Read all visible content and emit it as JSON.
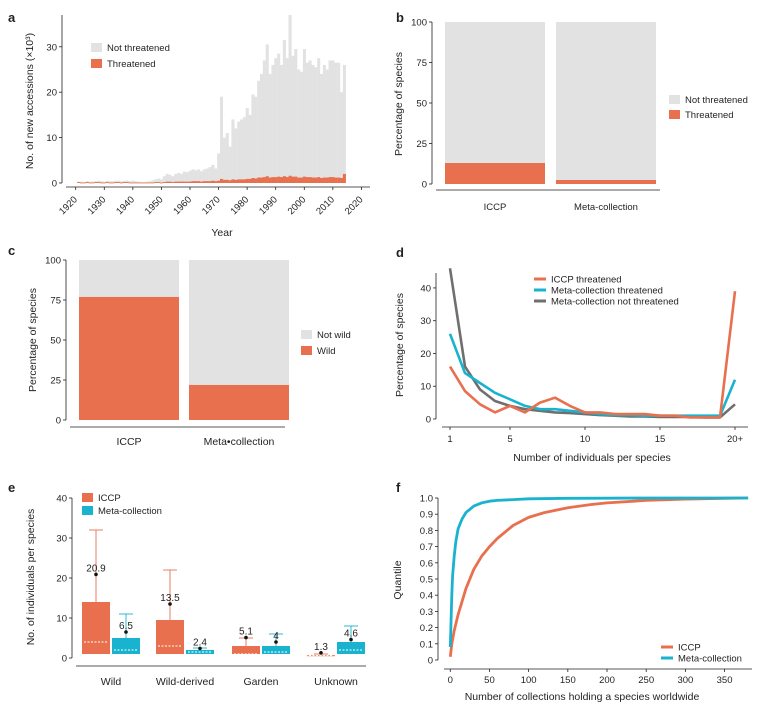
{
  "colors": {
    "threatened": "#E8704F",
    "not_threatened": "#E2E2E3",
    "meta": "#1AB3CF",
    "meta_not_threatened": "#6F6F6F",
    "axis": "#231f20"
  },
  "chart_data": [
    {
      "panel": "a",
      "type": "bar",
      "xlabel": "Year",
      "ylabel": "No. of new accessions (×10³)",
      "xlim": [
        1918,
        2023
      ],
      "ylim": [
        0,
        37
      ],
      "xticks": [
        1920,
        1930,
        1940,
        1950,
        1960,
        1970,
        1980,
        1990,
        2000,
        2010,
        2020
      ],
      "yticks": [
        0,
        10,
        20,
        30
      ],
      "legend": [
        "Not threatened",
        "Threatened"
      ],
      "legend_position": "top-left",
      "series": [
        {
          "name": "Not threatened",
          "x_start": 1921,
          "values": [
            0.3,
            0.3,
            0.2,
            0.4,
            0.3,
            0.3,
            0.4,
            0.5,
            0.4,
            0.3,
            0.5,
            0.4,
            0.4,
            0.5,
            0.5,
            0.4,
            0.5,
            0.5,
            0.4,
            0.5,
            0.4,
            0.3,
            0.2,
            0.2,
            0.3,
            0.4,
            0.6,
            0.8,
            1.0,
            0.8,
            1.5,
            2.0,
            1.8,
            1.5,
            2.0,
            2.2,
            2.0,
            2.5,
            2.4,
            2.7,
            3.0,
            2.8,
            3.0,
            2.6,
            3.0,
            3.2,
            3.5,
            4.0,
            3.2,
            6.5,
            19.0,
            10.0,
            11.0,
            8.0,
            14.0,
            12.0,
            13.5,
            14.0,
            14.5,
            16.5,
            15.0,
            19.5,
            19.0,
            22.5,
            24.0,
            27.0,
            30.5,
            24.0,
            26.0,
            27.5,
            28.5,
            26.0,
            31.5,
            27.5,
            37.0,
            28.0,
            29.5,
            25.0,
            24.5,
            29.5,
            26.5,
            27.0,
            26.0,
            25.5,
            27.5,
            24.0,
            26.0,
            25.0,
            27.0,
            27.0,
            26.5,
            26.5,
            20.0,
            26.0
          ]
        },
        {
          "name": "Threatened",
          "x_start": 1921,
          "values": [
            0.2,
            0.1,
            0.1,
            0.2,
            0.1,
            0.1,
            0.2,
            0.2,
            0.1,
            0.1,
            0.2,
            0.1,
            0.1,
            0.2,
            0.2,
            0.1,
            0.2,
            0.2,
            0.1,
            0.1,
            0.1,
            0.1,
            0.1,
            0.1,
            0.1,
            0.1,
            0.1,
            0.2,
            0.2,
            0.1,
            0.2,
            0.3,
            0.3,
            0.2,
            0.3,
            0.3,
            0.3,
            0.3,
            0.3,
            0.3,
            0.4,
            0.4,
            0.4,
            0.3,
            0.4,
            0.4,
            0.4,
            0.5,
            0.4,
            0.5,
            0.9,
            0.7,
            0.7,
            0.6,
            0.8,
            0.7,
            0.8,
            0.8,
            0.8,
            0.9,
            0.9,
            1.1,
            1.0,
            1.2,
            1.2,
            1.3,
            1.5,
            1.2,
            1.3,
            1.3,
            1.4,
            1.3,
            1.5,
            1.3,
            1.6,
            1.4,
            1.4,
            1.2,
            1.2,
            1.4,
            1.3,
            1.3,
            1.2,
            1.2,
            1.3,
            1.1,
            1.2,
            1.2,
            1.3,
            1.3,
            1.2,
            1.2,
            1.1,
            2.0
          ]
        }
      ]
    },
    {
      "panel": "b",
      "type": "bar",
      "stacked": true,
      "categories": [
        "ICCP",
        "Meta-collection"
      ],
      "ylabel": "Percentage of species",
      "ylim": [
        0,
        100
      ],
      "yticks": [
        0,
        25,
        50,
        75,
        100
      ],
      "legend": [
        "Not threatened",
        "Threatened"
      ],
      "legend_position": "right",
      "series": [
        {
          "name": "Threatened",
          "values": [
            13,
            2.5
          ]
        },
        {
          "name": "Not threatened",
          "values": [
            87,
            97.5
          ]
        }
      ]
    },
    {
      "panel": "c",
      "type": "bar",
      "stacked": true,
      "categories": [
        "ICCP",
        "Meta•collection"
      ],
      "ylabel": "Percentage of species",
      "ylim": [
        0,
        100
      ],
      "yticks": [
        0,
        25,
        50,
        75,
        100
      ],
      "legend": [
        "Not wild",
        "Wild"
      ],
      "legend_position": "right",
      "series": [
        {
          "name": "Wild",
          "values": [
            77,
            22
          ]
        },
        {
          "name": "Not wild",
          "values": [
            23,
            78
          ]
        }
      ]
    },
    {
      "panel": "d",
      "type": "line",
      "xlabel": "Number of individuals per species",
      "ylabel": "Percentage of species",
      "x": [
        1,
        2,
        3,
        4,
        5,
        6,
        7,
        8,
        9,
        10,
        11,
        12,
        13,
        14,
        15,
        16,
        17,
        18,
        19,
        20
      ],
      "xticks": [
        1,
        5,
        10,
        15,
        "20+"
      ],
      "ylim": [
        0,
        47
      ],
      "yticks": [
        0,
        10,
        20,
        30,
        40
      ],
      "legend_position": "top",
      "series": [
        {
          "name": "ICCP threatened",
          "values": [
            16,
            8.5,
            4.5,
            2,
            4,
            2,
            5,
            6.5,
            4,
            2,
            2,
            1.5,
            1.5,
            1.5,
            1,
            1,
            0.5,
            0.5,
            0.5,
            39
          ]
        },
        {
          "name": "Meta-collection threatened",
          "values": [
            26,
            14,
            11,
            8,
            6,
            4,
            3,
            3,
            2.5,
            2,
            1.5,
            1.2,
            1.2,
            1,
            1,
            1,
            1,
            1,
            1,
            12
          ]
        },
        {
          "name": "Meta-collection not threatened",
          "values": [
            46,
            16,
            9,
            5.5,
            4,
            3,
            2.5,
            2,
            1.8,
            1.5,
            1.2,
            1,
            0.8,
            0.8,
            0.6,
            0.6,
            0.6,
            0.5,
            0.5,
            4.5
          ]
        }
      ]
    },
    {
      "panel": "e",
      "type": "bar",
      "categories": [
        "Wild",
        "Wild-derived",
        "Garden",
        "Unknown"
      ],
      "ylabel": "No. of individuals per species",
      "ylim": [
        0,
        42
      ],
      "yticks": [
        0,
        10,
        20,
        30,
        40
      ],
      "legend": [
        "ICCP",
        "Meta-collection"
      ],
      "legend_position": "top-left",
      "series": [
        {
          "name": "ICCP",
          "q1": [
            1,
            1,
            1,
            0.5
          ],
          "q3": [
            14,
            9.5,
            3,
            0.7
          ],
          "median": [
            4,
            3,
            1,
            0.6
          ],
          "whisker_high": [
            32,
            22,
            5,
            1
          ],
          "mean": [
            20.9,
            13.5,
            5.1,
            1.3
          ],
          "mean_labels": [
            "20.9",
            "13.5",
            "5.1",
            "1.3"
          ]
        },
        {
          "name": "Meta-collection",
          "q1": [
            1,
            1,
            1,
            1
          ],
          "q3": [
            5,
            2,
            3,
            4
          ],
          "median": [
            2,
            1.5,
            1.5,
            2
          ],
          "whisker_high": [
            11,
            2.5,
            6,
            8
          ],
          "mean": [
            6.5,
            2.4,
            4,
            4.6
          ],
          "mean_labels": [
            "6.5",
            "2.4",
            "4",
            "4.6"
          ]
        }
      ]
    },
    {
      "panel": "f",
      "type": "line",
      "xlabel": "Number of collections holding a species worldwide",
      "ylabel": "Quantile",
      "xlim": [
        -8,
        385
      ],
      "ylim": [
        0,
        1.0
      ],
      "xticks": [
        0,
        50,
        100,
        150,
        200,
        250,
        300,
        350
      ],
      "yticks": [
        0,
        0.1,
        0.2,
        0.3,
        0.4,
        0.5,
        0.6,
        0.7,
        0.8,
        0.9,
        1.0
      ],
      "legend_position": "bottom-right",
      "series": [
        {
          "name": "ICCP",
          "x": [
            0,
            2,
            5,
            10,
            15,
            20,
            30,
            40,
            50,
            60,
            80,
            100,
            120,
            150,
            180,
            200,
            250,
            300,
            350,
            380
          ],
          "values": [
            0.02,
            0.1,
            0.18,
            0.28,
            0.36,
            0.44,
            0.56,
            0.64,
            0.7,
            0.75,
            0.83,
            0.88,
            0.91,
            0.94,
            0.96,
            0.97,
            0.985,
            0.993,
            0.998,
            1.0
          ]
        },
        {
          "name": "Meta-collection",
          "x": [
            0,
            1,
            2,
            3,
            5,
            7,
            10,
            15,
            20,
            30,
            40,
            50,
            60,
            80,
            100,
            150,
            200,
            250,
            300,
            380
          ],
          "values": [
            0.08,
            0.25,
            0.4,
            0.52,
            0.64,
            0.73,
            0.81,
            0.87,
            0.91,
            0.95,
            0.97,
            0.98,
            0.985,
            0.99,
            0.995,
            0.998,
            0.999,
            1.0,
            1.0,
            1.0
          ]
        }
      ]
    }
  ]
}
